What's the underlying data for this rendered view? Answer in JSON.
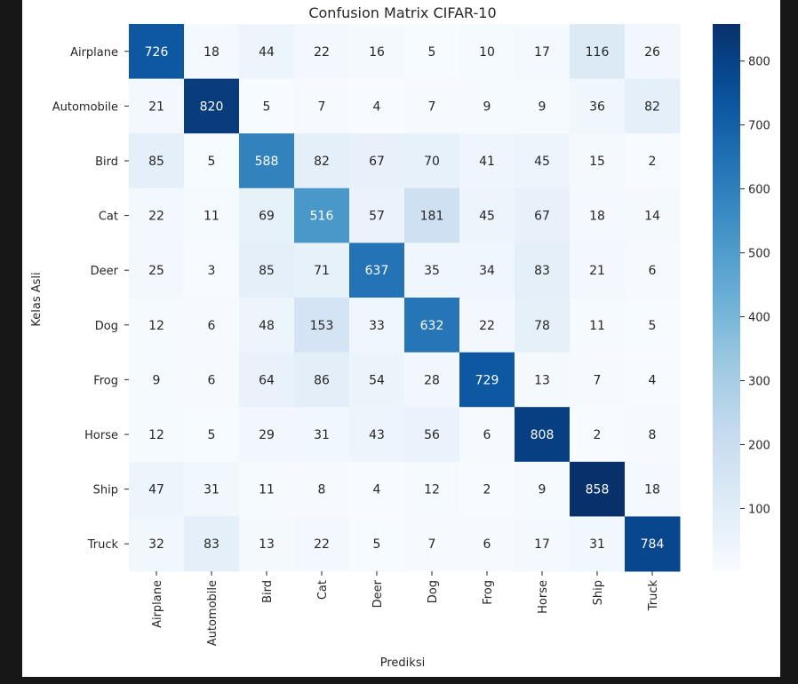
{
  "chart_data": {
    "type": "heatmap",
    "title": "Confusion Matrix CIFAR-10",
    "xlabel": "Prediksi",
    "ylabel": "Kelas Asli",
    "x_categories": [
      "Airplane",
      "Automobile",
      "Bird",
      "Cat",
      "Deer",
      "Dog",
      "Frog",
      "Horse",
      "Ship",
      "Truck"
    ],
    "y_categories": [
      "Airplane",
      "Automobile",
      "Bird",
      "Cat",
      "Deer",
      "Dog",
      "Frog",
      "Horse",
      "Ship",
      "Truck"
    ],
    "values": [
      [
        726,
        18,
        44,
        22,
        16,
        5,
        10,
        17,
        116,
        26
      ],
      [
        21,
        820,
        5,
        7,
        4,
        7,
        9,
        9,
        36,
        82
      ],
      [
        85,
        5,
        588,
        82,
        67,
        70,
        41,
        45,
        15,
        2
      ],
      [
        22,
        11,
        69,
        516,
        57,
        181,
        45,
        67,
        18,
        14
      ],
      [
        25,
        3,
        85,
        71,
        637,
        35,
        34,
        83,
        21,
        6
      ],
      [
        12,
        6,
        48,
        153,
        33,
        632,
        22,
        78,
        11,
        5
      ],
      [
        9,
        6,
        64,
        86,
        54,
        28,
        729,
        13,
        7,
        4
      ],
      [
        12,
        5,
        29,
        31,
        43,
        56,
        6,
        808,
        2,
        8
      ],
      [
        47,
        31,
        11,
        8,
        4,
        12,
        2,
        9,
        858,
        18
      ],
      [
        32,
        83,
        13,
        22,
        5,
        7,
        6,
        17,
        31,
        784
      ]
    ],
    "colorbar": {
      "colormap": "Blues",
      "range": [
        2,
        858
      ],
      "ticks": [
        100,
        200,
        300,
        400,
        500,
        600,
        700,
        800
      ]
    },
    "annotations": true,
    "grid": false
  }
}
